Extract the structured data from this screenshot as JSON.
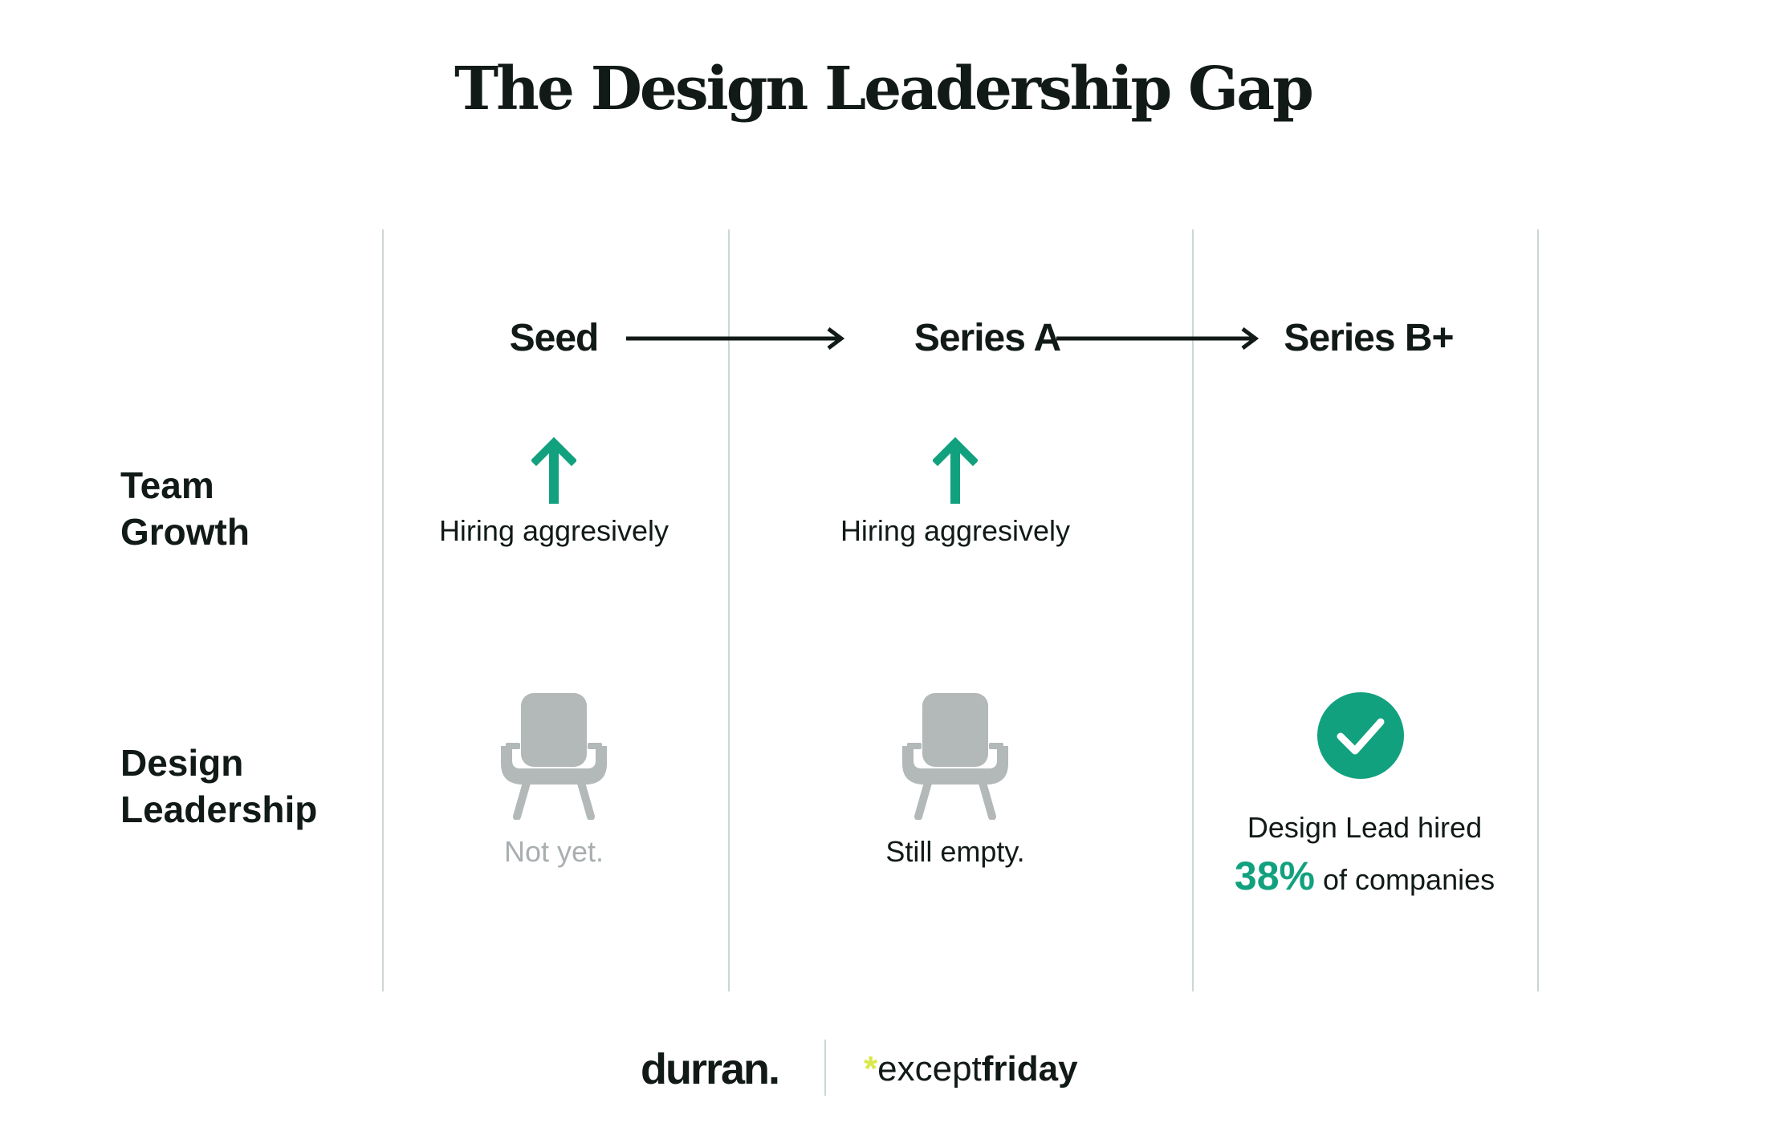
{
  "title": "The Design Leadership Gap",
  "stages": [
    "Seed",
    "Series A",
    "Series B+"
  ],
  "rows": {
    "team_growth": {
      "label_line1": "Team",
      "label_line2": "Growth"
    },
    "design_leadership": {
      "label_line1": "Design",
      "label_line2": "Leadership"
    }
  },
  "cells": {
    "seed_growth": "Hiring aggresively",
    "series_a_growth": "Hiring aggresively",
    "seed_leadership": "Not yet.",
    "series_a_leadership": "Still empty.",
    "series_b_leadership_line1": "Design Lead hired",
    "series_b_percent": "38%",
    "series_b_suffix": "of companies"
  },
  "logos": {
    "durran": "durran.",
    "except_star": "*",
    "except_text": "except",
    "friday_text": "friday"
  },
  "icons": {
    "growth": "arrow-up-icon",
    "empty_seat": "armchair-icon",
    "hired": "check-circle-icon",
    "flow": "arrow-right-icon"
  },
  "colors": {
    "accent": "#12a17e",
    "text": "#111a17",
    "muted": "#a9aeb0",
    "chair": "#b3b8b8",
    "divider": "#cdd6d4",
    "logo_star": "#d9e84a"
  }
}
